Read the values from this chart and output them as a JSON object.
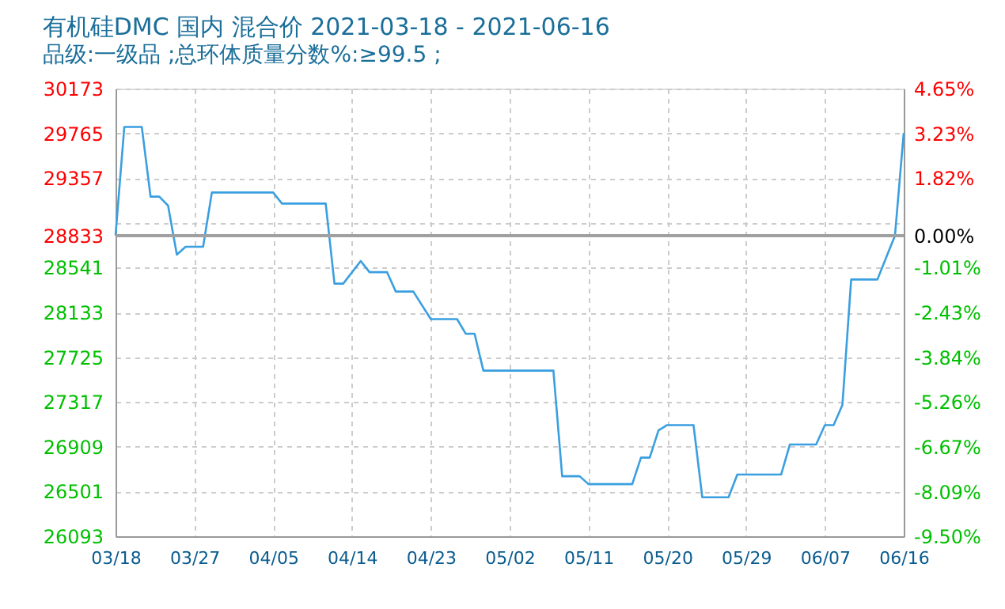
{
  "chart_data": {
    "type": "line",
    "title": "有机硅DMC 国内 混合价 2021-03-18 - 2021-06-16",
    "subtitle": "品级:一级品 ;总环体质量分数%:≥99.5 ;",
    "x": [
      "2021-03-18",
      "2021-03-19",
      "2021-03-21",
      "2021-03-22",
      "2021-03-23",
      "2021-03-24",
      "2021-03-25",
      "2021-03-26",
      "2021-03-28",
      "2021-03-29",
      "2021-04-05",
      "2021-04-06",
      "2021-04-11",
      "2021-04-12",
      "2021-04-13",
      "2021-04-15",
      "2021-04-16",
      "2021-04-18",
      "2021-04-19",
      "2021-04-21",
      "2021-04-23",
      "2021-04-26",
      "2021-04-27",
      "2021-04-28",
      "2021-04-29",
      "2021-05-07",
      "2021-05-08",
      "2021-05-10",
      "2021-05-11",
      "2021-05-16",
      "2021-05-17",
      "2021-05-18",
      "2021-05-19",
      "2021-05-20",
      "2021-05-23",
      "2021-05-24",
      "2021-05-27",
      "2021-05-28",
      "2021-06-02",
      "2021-06-03",
      "2021-06-06",
      "2021-06-07",
      "2021-06-08",
      "2021-06-09",
      "2021-06-10",
      "2021-06-13",
      "2021-06-14",
      "2021-06-15",
      "2021-06-16"
    ],
    "series": [
      {
        "color": "#3a9fe0",
        "values": [
          28833,
          29823,
          29823,
          29188,
          29188,
          29106,
          28659,
          28731,
          28731,
          29226,
          29226,
          29125,
          29125,
          28395,
          28395,
          28601,
          28500,
          28500,
          28323,
          28323,
          28072,
          28072,
          27938,
          27938,
          27602,
          27602,
          26640,
          26640,
          26568,
          26568,
          26809,
          26809,
          27058,
          27106,
          27106,
          26448,
          26448,
          26655,
          26655,
          26929,
          26929,
          27106,
          27106,
          27289,
          28433,
          28433,
          28634,
          28833,
          29769
        ]
      }
    ],
    "xlim": [
      "2021-03-18",
      "2021-06-16"
    ],
    "xticks": [
      {
        "value": "2021-03-18",
        "label": "03/18"
      },
      {
        "value": "2021-03-27",
        "label": "03/27"
      },
      {
        "value": "2021-04-05",
        "label": "04/05"
      },
      {
        "value": "2021-04-14",
        "label": "04/14"
      },
      {
        "value": "2021-04-23",
        "label": "04/23"
      },
      {
        "value": "2021-05-02",
        "label": "05/02"
      },
      {
        "value": "2021-05-11",
        "label": "05/11"
      },
      {
        "value": "2021-05-20",
        "label": "05/20"
      },
      {
        "value": "2021-05-29",
        "label": "05/29"
      },
      {
        "value": "2021-06-07",
        "label": "06/07"
      },
      {
        "value": "2021-06-16",
        "label": "06/16"
      }
    ],
    "ylim": [
      26093,
      30173
    ],
    "yticks": [
      26093,
      26501,
      26909,
      27317,
      27725,
      28133,
      28541,
      28833,
      {
        "value": 28949,
        "label": null
      },
      29357,
      29765,
      30173
    ],
    "y2lim": [
      -9.5,
      4.65
    ],
    "y2ticks": [
      {
        "value": -9.5,
        "label": "-9.50%"
      },
      {
        "value": -8.09,
        "label": "-8.09%"
      },
      {
        "value": -6.67,
        "label": "-6.67%"
      },
      {
        "value": -5.26,
        "label": "-5.26%"
      },
      {
        "value": -3.84,
        "label": "-3.84%"
      },
      {
        "value": -2.43,
        "label": "-2.43%"
      },
      {
        "value": -1.01,
        "label": "-1.01%"
      },
      {
        "value": 0,
        "label": "0.00%"
      },
      {
        "value": 1.82,
        "label": "1.82%"
      },
      {
        "value": 3.23,
        "label": "3.23%"
      },
      {
        "value": 4.65,
        "label": "4.65%"
      }
    ],
    "ref_lines": [
      {
        "axis": "y2",
        "value": 0,
        "color": "#a0a0a0"
      }
    ],
    "grid": true,
    "legend": false,
    "marker": "none",
    "line_style": "solid"
  }
}
